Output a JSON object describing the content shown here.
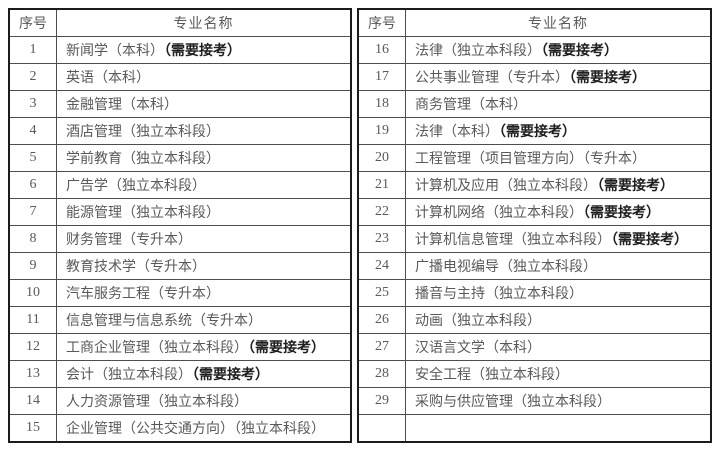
{
  "columns": {
    "index_header": "序号",
    "name_header": "专业名称"
  },
  "tables": [
    {
      "rows": [
        {
          "num": "1",
          "name": "新闻学（本科）",
          "note": "（需要接考）"
        },
        {
          "num": "2",
          "name": "英语（本科）",
          "note": ""
        },
        {
          "num": "3",
          "name": "金融管理（本科）",
          "note": ""
        },
        {
          "num": "4",
          "name": "酒店管理（独立本科段）",
          "note": ""
        },
        {
          "num": "5",
          "name": "学前教育（独立本科段）",
          "note": ""
        },
        {
          "num": "6",
          "name": "广告学（独立本科段）",
          "note": ""
        },
        {
          "num": "7",
          "name": "能源管理（独立本科段）",
          "note": ""
        },
        {
          "num": "8",
          "name": "财务管理（专升本）",
          "note": ""
        },
        {
          "num": "9",
          "name": "教育技术学（专升本）",
          "note": ""
        },
        {
          "num": "10",
          "name": "汽车服务工程（专升本）",
          "note": ""
        },
        {
          "num": "11",
          "name": "信息管理与信息系统（专升本）",
          "note": ""
        },
        {
          "num": "12",
          "name": "工商企业管理（独立本科段）",
          "note": "（需要接考）"
        },
        {
          "num": "13",
          "name": "会计（独立本科段）",
          "note": "（需要接考）"
        },
        {
          "num": "14",
          "name": "人力资源管理（独立本科段）",
          "note": ""
        },
        {
          "num": "15",
          "name": "企业管理（公共交通方向）（独立本科段）",
          "note": ""
        }
      ]
    },
    {
      "rows": [
        {
          "num": "16",
          "name": "法律（独立本科段）",
          "note": "（需要接考）"
        },
        {
          "num": "17",
          "name": "公共事业管理（专升本）",
          "note": "（需要接考）"
        },
        {
          "num": "18",
          "name": "商务管理（本科）",
          "note": ""
        },
        {
          "num": "19",
          "name": "法律（本科）",
          "note": "（需要接考）"
        },
        {
          "num": "20",
          "name": "工程管理（项目管理方向）（专升本）",
          "note": ""
        },
        {
          "num": "21",
          "name": "计算机及应用（独立本科段）",
          "note": "（需要接考）"
        },
        {
          "num": "22",
          "name": "计算机网络（独立本科段）",
          "note": "（需要接考）"
        },
        {
          "num": "23",
          "name": "计算机信息管理（独立本科段）",
          "note": "（需要接考）"
        },
        {
          "num": "24",
          "name": "广播电视编导（独立本科段）",
          "note": ""
        },
        {
          "num": "25",
          "name": "播音与主持（独立本科段）",
          "note": ""
        },
        {
          "num": "26",
          "name": "动画（独立本科段）",
          "note": ""
        },
        {
          "num": "27",
          "name": "汉语言文学（本科）",
          "note": ""
        },
        {
          "num": "28",
          "name": "安全工程（独立本科段）",
          "note": ""
        },
        {
          "num": "29",
          "name": "采购与供应管理（独立本科段）",
          "note": ""
        },
        {
          "num": "",
          "name": "",
          "note": ""
        }
      ]
    }
  ]
}
